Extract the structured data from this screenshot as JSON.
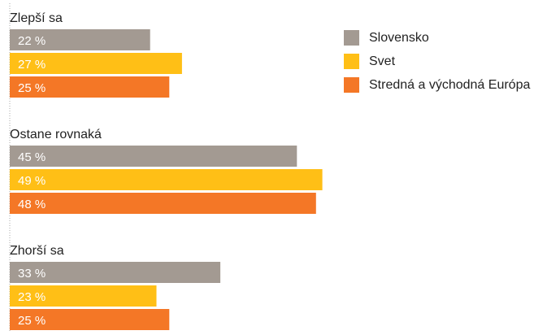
{
  "chart_data": {
    "type": "bar",
    "orientation": "horizontal",
    "categories": [
      "Zlepší sa",
      "Ostane rovnaká",
      "Zhorší sa"
    ],
    "series": [
      {
        "name": "Slovensko",
        "values": [
          22,
          45,
          33
        ],
        "labels": [
          "22 %",
          "45 %",
          "33 %"
        ],
        "color": "#a39a92"
      },
      {
        "name": "Svet",
        "values": [
          27,
          49,
          23
        ],
        "labels": [
          "27 %",
          "49 %",
          "23 %"
        ],
        "color": "#ffbf16"
      },
      {
        "name": "Stredná a východná Európa",
        "values": [
          25,
          48,
          25
        ],
        "labels": [
          "25 %",
          "48 %",
          "25 %"
        ],
        "color": "#f47726"
      }
    ],
    "xlim": [
      0,
      100
    ],
    "value_labels": "inside bars",
    "legend": "top-right",
    "grid": false
  }
}
